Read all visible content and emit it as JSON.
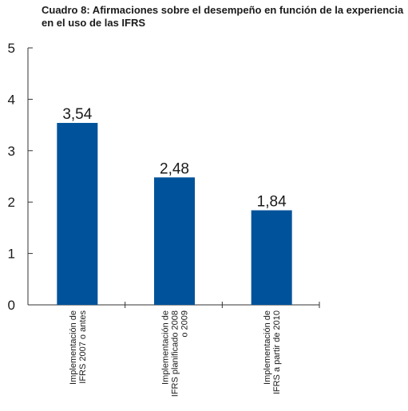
{
  "chart_data": {
    "type": "bar",
    "title": "Cuadro 8: Afirmaciones sobre el desempeño en función de la experiencia en el uso de las IFRS",
    "categories": [
      "Implementación de IFRS 2007 o antes",
      "Implementación de IFRS planificado 2008 o 2009",
      "Implementación de IFRS a partir de 2010"
    ],
    "category_lines": [
      [
        "Implementación de",
        "IFRS 2007 o antes"
      ],
      [
        "Implementación de",
        "IFRS planificado 2008",
        "o 2009"
      ],
      [
        "Implementación de",
        "IFRS a partir de 2010"
      ]
    ],
    "values": [
      3.54,
      2.48,
      1.84
    ],
    "value_labels": [
      "3,54",
      "2,48",
      "1,84"
    ],
    "ylim": [
      0,
      5
    ],
    "yticks": [
      "0",
      "1",
      "2",
      "3",
      "4",
      "5"
    ],
    "xlabel": "",
    "ylabel": "",
    "grid": false,
    "bar_color": "#00529b"
  }
}
